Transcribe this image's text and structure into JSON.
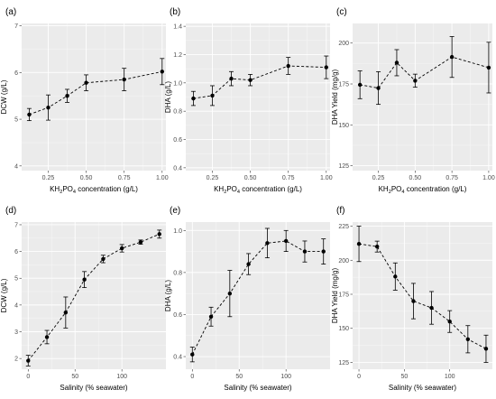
{
  "chart_data": [
    {
      "type": "line",
      "panel_label": "(a)",
      "xlabel": "KH2PO4 concentration (g/L)",
      "ylabel": "DCW (g/L)",
      "xlim": [
        0.075,
        1.025
      ],
      "ylim": [
        3.9,
        7.05
      ],
      "xticks": [
        0.25,
        0.5,
        0.75,
        1.0
      ],
      "xtick_labels": [
        "0.25",
        "0.50",
        "0.75",
        "1.00"
      ],
      "yticks": [
        4,
        5,
        6,
        7
      ],
      "ytick_labels": [
        "4",
        "5",
        "6",
        "7"
      ],
      "x": [
        0.125,
        0.25,
        0.375,
        0.5,
        0.75,
        1.0
      ],
      "y": [
        5.1,
        5.25,
        5.5,
        5.78,
        5.85,
        6.02
      ],
      "err": [
        0.13,
        0.27,
        0.14,
        0.17,
        0.24,
        0.28
      ],
      "grid": true
    },
    {
      "type": "line",
      "panel_label": "(b)",
      "xlabel": "KH2PO4 concentration (g/L)",
      "ylabel": "DHA (g/L)",
      "xlim": [
        0.075,
        1.025
      ],
      "ylim": [
        0.38,
        1.42
      ],
      "xticks": [
        0.25,
        0.5,
        0.75,
        1.0
      ],
      "xtick_labels": [
        "0.25",
        "0.50",
        "0.75",
        "1.00"
      ],
      "yticks": [
        0.4,
        0.6,
        0.8,
        1.0,
        1.2,
        1.4
      ],
      "ytick_labels": [
        "0.4",
        "0.6",
        "0.8",
        "1.0",
        "1.2",
        "1.4"
      ],
      "x": [
        0.125,
        0.25,
        0.375,
        0.5,
        0.75,
        1.0
      ],
      "y": [
        0.89,
        0.91,
        1.03,
        1.02,
        1.12,
        1.11
      ],
      "err": [
        0.05,
        0.07,
        0.05,
        0.04,
        0.06,
        0.08
      ],
      "grid": true
    },
    {
      "type": "line",
      "panel_label": "(c)",
      "xlabel": "KH2PO4 concentration (g/L)",
      "ylabel": "DHA Yield (mg/g)",
      "xlim": [
        0.075,
        1.025
      ],
      "ylim": [
        122,
        212
      ],
      "xticks": [
        0.25,
        0.5,
        0.75,
        1.0
      ],
      "xtick_labels": [
        "0.25",
        "0.50",
        "0.75",
        "1.00"
      ],
      "yticks": [
        125,
        150,
        175,
        200
      ],
      "ytick_labels": [
        "125",
        "150",
        "175",
        "200"
      ],
      "x": [
        0.125,
        0.25,
        0.375,
        0.5,
        0.75,
        1.0
      ],
      "y": [
        174.5,
        172.5,
        188,
        177,
        191.5,
        185
      ],
      "err": [
        8.5,
        10,
        8,
        4,
        12.5,
        15.5
      ],
      "grid": true
    },
    {
      "type": "line",
      "panel_label": "(d)",
      "xlabel": "Salinity (% seawater)",
      "ylabel": "DCW (g/L)",
      "xlim": [
        -7,
        147
      ],
      "ylim": [
        1.6,
        7.1
      ],
      "xticks": [
        0,
        50,
        100
      ],
      "xtick_labels": [
        "0",
        "50",
        "100"
      ],
      "yticks": [
        2,
        3,
        4,
        5,
        6,
        7
      ],
      "ytick_labels": [
        "2",
        "3",
        "4",
        "5",
        "6",
        "7"
      ],
      "x": [
        0,
        20,
        40,
        60,
        80,
        100,
        120,
        140
      ],
      "y": [
        1.92,
        2.8,
        3.72,
        4.95,
        5.72,
        6.12,
        6.35,
        6.65
      ],
      "err": [
        0.2,
        0.25,
        0.58,
        0.3,
        0.14,
        0.14,
        0.08,
        0.15
      ],
      "grid": true
    },
    {
      "type": "line",
      "panel_label": "(e)",
      "xlabel": "Salinity (% seawater)",
      "ylabel": "DHA (g/L)",
      "xlim": [
        -7,
        147
      ],
      "ylim": [
        0.34,
        1.04
      ],
      "xticks": [
        0,
        50,
        100
      ],
      "xtick_labels": [
        "0",
        "50",
        "100"
      ],
      "yticks": [
        0.4,
        0.6,
        0.8,
        1.0
      ],
      "ytick_labels": [
        "0.4",
        "0.6",
        "0.8",
        "1.0"
      ],
      "x": [
        0,
        20,
        40,
        60,
        80,
        100,
        120,
        140
      ],
      "y": [
        0.41,
        0.59,
        0.7,
        0.84,
        0.94,
        0.95,
        0.9,
        0.9
      ],
      "err": [
        0.035,
        0.045,
        0.11,
        0.05,
        0.07,
        0.05,
        0.05,
        0.06
      ],
      "grid": true
    },
    {
      "type": "line",
      "panel_label": "(f)",
      "xlabel": "Salinity (% seawater)",
      "ylabel": "DHA Yield (mg/g)",
      "xlim": [
        -7,
        147
      ],
      "ylim": [
        120,
        228
      ],
      "xticks": [
        0,
        50,
        100
      ],
      "xtick_labels": [
        "0",
        "50",
        "100"
      ],
      "yticks": [
        125,
        150,
        175,
        200,
        225
      ],
      "ytick_labels": [
        "125",
        "150",
        "175",
        "200",
        "225"
      ],
      "x": [
        0,
        20,
        40,
        60,
        80,
        100,
        120,
        140
      ],
      "y": [
        212,
        210,
        188,
        170,
        165,
        155,
        142,
        135
      ],
      "err": [
        13,
        4,
        10,
        13,
        12,
        8,
        10,
        10
      ],
      "grid": true
    }
  ]
}
